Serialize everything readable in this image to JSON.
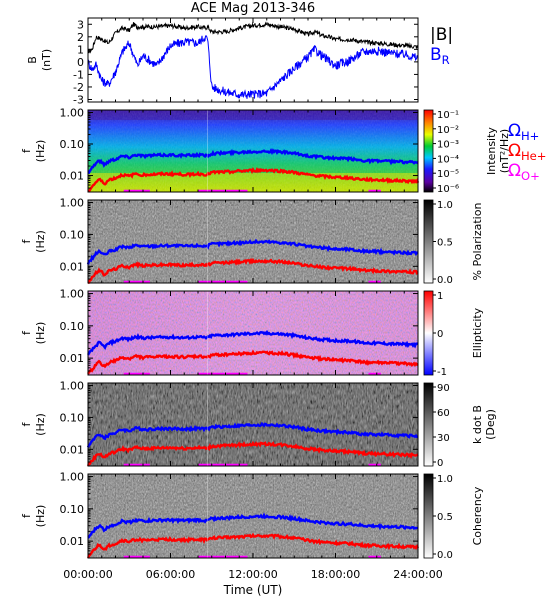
{
  "chart_data": [
    {
      "type": "line",
      "title": "ACE Mag 2013-346",
      "ylabel": "B",
      "yunit": "(nT)",
      "ylim": [
        -3.2,
        3.5
      ],
      "yticks": [
        3,
        2,
        1,
        0,
        -1,
        -2,
        -3
      ],
      "xlim_hours": [
        0,
        24
      ],
      "series": [
        {
          "name": "|B|",
          "color": "#000000",
          "x": [
            0,
            0.3,
            0.6,
            1,
            1.5,
            2,
            2.5,
            3,
            3.3,
            3.6,
            4,
            5,
            6,
            7,
            8,
            8.5,
            8.7,
            9,
            10,
            11,
            12,
            13,
            14,
            15,
            16,
            16.5,
            17,
            17.5,
            18,
            19,
            20,
            21,
            22,
            23,
            24
          ],
          "y": [
            0.8,
            1.0,
            2.0,
            1.8,
            1.5,
            2.3,
            2.7,
            2.5,
            3.0,
            2.8,
            2.8,
            2.8,
            2.9,
            2.7,
            2.8,
            2.7,
            2.8,
            2.4,
            2.4,
            2.7,
            2.9,
            3.0,
            2.8,
            2.6,
            2.2,
            2.4,
            2.1,
            2.0,
            1.8,
            1.8,
            1.6,
            1.5,
            1.4,
            1.3,
            1.2
          ]
        },
        {
          "name": "B",
          "sub": "R",
          "color": "#0000ff",
          "x": [
            0,
            0.3,
            0.6,
            1,
            1.5,
            2,
            2.5,
            3,
            3.3,
            3.6,
            4,
            5,
            6,
            7,
            8,
            8.5,
            8.7,
            9,
            10,
            11,
            12,
            13,
            14,
            15,
            16,
            16.5,
            17,
            17.5,
            18,
            19,
            20,
            21,
            22,
            23,
            24
          ],
          "y": [
            0.0,
            -0.6,
            -0.2,
            -1.5,
            -1.8,
            -0.8,
            0.8,
            1.5,
            0.6,
            -0.3,
            0.5,
            -0.3,
            1.3,
            1.6,
            1.5,
            2.0,
            1.8,
            -2.0,
            -2.4,
            -2.6,
            -2.6,
            -2.5,
            -1.5,
            -0.5,
            0.4,
            1.0,
            0.5,
            0.1,
            -0.3,
            0.1,
            0.8,
            0.9,
            0.7,
            0.6,
            0.3
          ]
        }
      ]
    },
    {
      "type": "heatmap",
      "ylabel": "f",
      "yunit": "(Hz)",
      "yscale": "log",
      "ylim": [
        0.003,
        1.2
      ],
      "yticks": [
        "1.00",
        "0.10",
        "0.01"
      ],
      "colorbar": {
        "label": "Intensity",
        "unit": "(nT²/Hz)",
        "ticks": [
          "10⁻¹",
          "10⁻²",
          "10⁻³",
          "10⁻⁴",
          "10⁻⁵",
          "10⁻⁶"
        ],
        "palette": "rainbow"
      },
      "legend": [
        {
          "label": "Ω",
          "sub": "H+",
          "color": "#0000ff"
        },
        {
          "label": "Ω",
          "sub": "He+",
          "color": "#ff0000"
        },
        {
          "label": "Ω",
          "sub": "O+",
          "color": "#ff00ff"
        }
      ]
    },
    {
      "type": "heatmap",
      "ylabel": "f",
      "yunit": "(Hz)",
      "yscale": "log",
      "yticks": [
        "1.00",
        "0.10",
        "0.01"
      ],
      "colorbar": {
        "label": "% Polarization",
        "ticks": [
          "1.0",
          "0.5",
          "0.0"
        ],
        "palette": "gray"
      }
    },
    {
      "type": "heatmap",
      "ylabel": "f",
      "yunit": "(Hz)",
      "yscale": "log",
      "yticks": [
        "1.00",
        "0.10",
        "0.01"
      ],
      "colorbar": {
        "label": "Ellipticity",
        "ticks": [
          "1",
          "0",
          "-1"
        ],
        "palette": "bwr"
      }
    },
    {
      "type": "heatmap",
      "ylabel": "f",
      "yunit": "(Hz)",
      "yscale": "log",
      "yticks": [
        "1.00",
        "0.10",
        "0.01"
      ],
      "colorbar": {
        "label": "k dot B",
        "unit": "(Deg)",
        "ticks": [
          "90",
          "60",
          "30",
          "0"
        ],
        "palette": "gray"
      }
    },
    {
      "type": "heatmap",
      "ylabel": "f",
      "yunit": "(Hz)",
      "yscale": "log",
      "yticks": [
        "1.00",
        "0.10",
        "0.01"
      ],
      "colorbar": {
        "label": "Coherency",
        "ticks": [
          "1.0",
          "0.5",
          "0.0"
        ],
        "palette": "gray"
      },
      "xlabel": "Time (UT)",
      "xticks": [
        "00:00:00",
        "06:00:00",
        "12:00:00",
        "18:00:00",
        "24:00:00"
      ]
    }
  ],
  "gyrofrequency": {
    "h_plus_hz": {
      "x": [
        0,
        0.4,
        0.8,
        1.2,
        1.6,
        2,
        2.5,
        3,
        3.5,
        4,
        5,
        6,
        7,
        8,
        8.7,
        9,
        10,
        11,
        12,
        13,
        14,
        15,
        16,
        17,
        18,
        19,
        20,
        21,
        22,
        23,
        24
      ],
      "y": [
        0.012,
        0.02,
        0.03,
        0.022,
        0.03,
        0.033,
        0.042,
        0.038,
        0.046,
        0.042,
        0.044,
        0.045,
        0.043,
        0.045,
        0.043,
        0.05,
        0.052,
        0.055,
        0.058,
        0.059,
        0.056,
        0.05,
        0.042,
        0.038,
        0.035,
        0.034,
        0.03,
        0.029,
        0.028,
        0.027,
        0.026
      ]
    },
    "he_plus_ratio": 0.25,
    "o_plus_ratio": 0.0625
  }
}
